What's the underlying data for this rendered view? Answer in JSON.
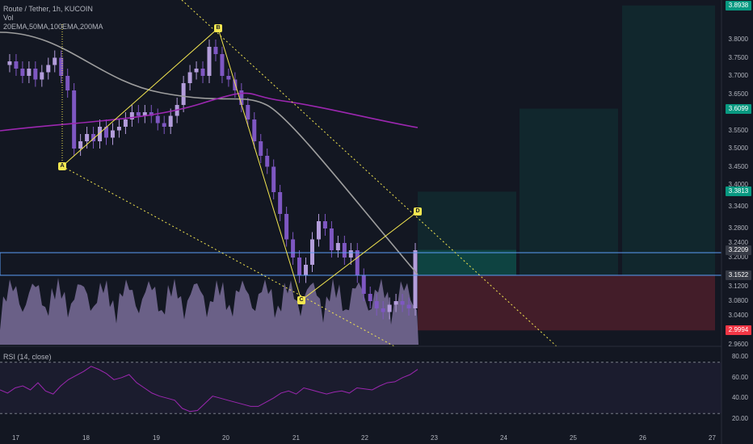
{
  "header": {
    "symbol_line": "Route / Tether, 1h, KUCOIN",
    "vol_label": "Vol",
    "indicators_line": "20EMA,50MA,100EMA,200MA"
  },
  "rsi": {
    "label": "RSI (14, close)",
    "levels": [
      "80.00",
      "60.00",
      "40.00",
      "20.00"
    ]
  },
  "price_axis": [
    "3.8000",
    "3.7500",
    "3.7000",
    "3.6500",
    "3.6000",
    "3.5500",
    "3.5000",
    "3.4500",
    "3.4000",
    "3.3400",
    "3.2800",
    "3.2400",
    "3.2000",
    "3.1200",
    "3.0800",
    "3.0400",
    "2.9600"
  ],
  "price_tags": [
    {
      "value": "3.8938",
      "color": "#089981"
    },
    {
      "value": "3.6099",
      "color": "#089981"
    },
    {
      "value": "3.3813",
      "color": "#089981"
    },
    {
      "value": "3.2209",
      "color": "#363a45"
    },
    {
      "value": "3.1522",
      "color": "#363a45"
    },
    {
      "value": "2.9994",
      "color": "#f23645"
    }
  ],
  "time_axis": [
    "17",
    "18",
    "19",
    "20",
    "21",
    "22",
    "23",
    "24",
    "25",
    "26",
    "27"
  ],
  "pattern_points": [
    "A",
    "B",
    "C",
    "D"
  ],
  "colors": {
    "background": "#131722",
    "up": "#b39ddb",
    "down": "#7e57c2",
    "pattern": "#f3e650",
    "ma_gray": "#9e9e9e",
    "ma_purple": "#9c27b0",
    "zone_blue": "#5b9cf6",
    "target_teal": "#089981",
    "stop_red": "#f23645"
  },
  "chart_data": {
    "type": "candlestick",
    "instrument": "Route / Tether",
    "interval": "1h",
    "exchange": "KUCOIN",
    "x_labels": [
      "17",
      "18",
      "19",
      "20",
      "21",
      "22",
      "23",
      "24",
      "25",
      "26",
      "27"
    ],
    "ylim": [
      2.96,
      3.9
    ],
    "harmonic_points": [
      {
        "label": "A",
        "price": 3.415
      },
      {
        "label": "B",
        "price": 3.81
      },
      {
        "label": "C",
        "price": 3.08
      },
      {
        "label": "D",
        "price": 3.28
      }
    ],
    "close_path": [
      3.73,
      3.74,
      3.72,
      3.7,
      3.72,
      3.69,
      3.71,
      3.73,
      3.75,
      3.7,
      3.66,
      3.5,
      3.52,
      3.54,
      3.52,
      3.56,
      3.53,
      3.55,
      3.56,
      3.58,
      3.6,
      3.59,
      3.6,
      3.59,
      3.57,
      3.56,
      3.59,
      3.62,
      3.68,
      3.71,
      3.72,
      3.7,
      3.78,
      3.76,
      3.7,
      3.69,
      3.66,
      3.62,
      3.58,
      3.52,
      3.48,
      3.45,
      3.38,
      3.32,
      3.25,
      3.2,
      3.15,
      3.18,
      3.25,
      3.3,
      3.28,
      3.22,
      3.24,
      3.2,
      3.22,
      3.15,
      3.1,
      3.08,
      3.06,
      3.05,
      3.07,
      3.08,
      3.07,
      3.06,
      3.22
    ],
    "rsi": [
      48,
      45,
      50,
      52,
      48,
      55,
      47,
      44,
      52,
      58,
      62,
      66,
      71,
      68,
      64,
      58,
      60,
      63,
      55,
      50,
      45,
      42,
      40,
      38,
      30,
      27,
      28,
      35,
      42,
      40,
      38,
      36,
      34,
      32,
      32,
      36,
      40,
      45,
      47,
      44,
      50,
      48,
      46,
      44,
      46,
      47,
      45,
      50,
      49,
      48,
      52,
      55,
      56,
      60,
      63,
      68
    ],
    "levels": [
      {
        "name": "target_3",
        "price": 3.8938
      },
      {
        "name": "target_2",
        "price": 3.6099
      },
      {
        "name": "target_1",
        "price": 3.3813
      },
      {
        "name": "last_price",
        "price": 3.2209
      },
      {
        "name": "entry",
        "price": 3.1522
      },
      {
        "name": "stop",
        "price": 2.9994
      }
    ]
  }
}
